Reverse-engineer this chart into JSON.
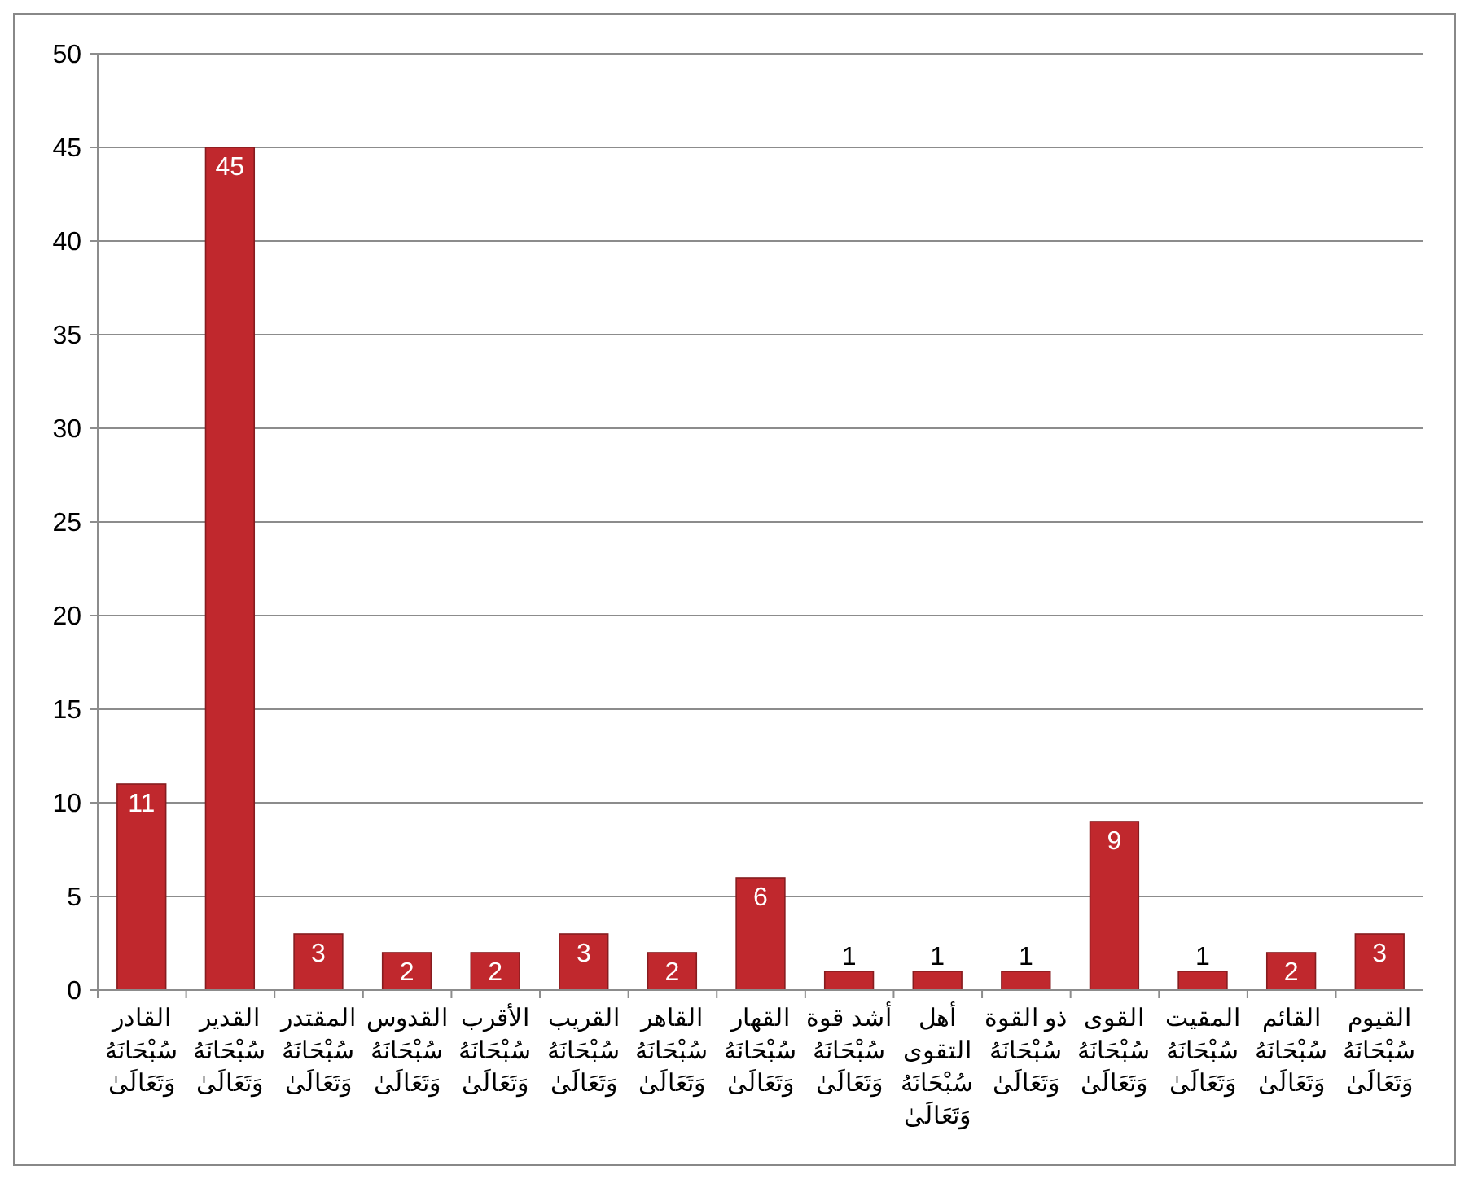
{
  "chart_data": {
    "type": "bar",
    "categories": [
      "القادر سُبْحَانَهُ وَتَعَالَىٰ",
      "القدير سُبْحَانَهُ وَتَعَالَىٰ",
      "المقتدر سُبْحَانَهُ وَتَعَالَىٰ",
      "القدوس سُبْحَانَهُ وَتَعَالَىٰ",
      "الأقرب سُبْحَانَهُ وَتَعَالَىٰ",
      "القريب سُبْحَانَهُ وَتَعَالَىٰ",
      "القاهر سُبْحَانَهُ وَتَعَالَىٰ",
      "القهار سُبْحَانَهُ وَتَعَالَىٰ",
      "أشد قوة سُبْحَانَهُ وَتَعَالَىٰ",
      "أهل التقوى سُبْحَانَهُ وَتَعَالَىٰ",
      "ذو القوة سُبْحَانَهُ وَتَعَالَىٰ",
      "القوى سُبْحَانَهُ وَتَعَالَىٰ",
      "المقيت سُبْحَانَهُ وَتَعَالَىٰ",
      "القائم سُبْحَانَهُ وَتَعَالَىٰ",
      "القيوم سُبْحَانَهُ وَتَعَالَىٰ"
    ],
    "values": [
      11,
      45,
      3,
      2,
      2,
      3,
      2,
      6,
      1,
      1,
      1,
      9,
      1,
      2,
      3
    ],
    "color": "#c0282d",
    "ylim": [
      0,
      50
    ],
    "yticks": [
      0,
      5,
      10,
      15,
      20,
      25,
      30,
      35,
      40,
      45,
      50
    ],
    "grid": "y",
    "data_labels": true
  }
}
